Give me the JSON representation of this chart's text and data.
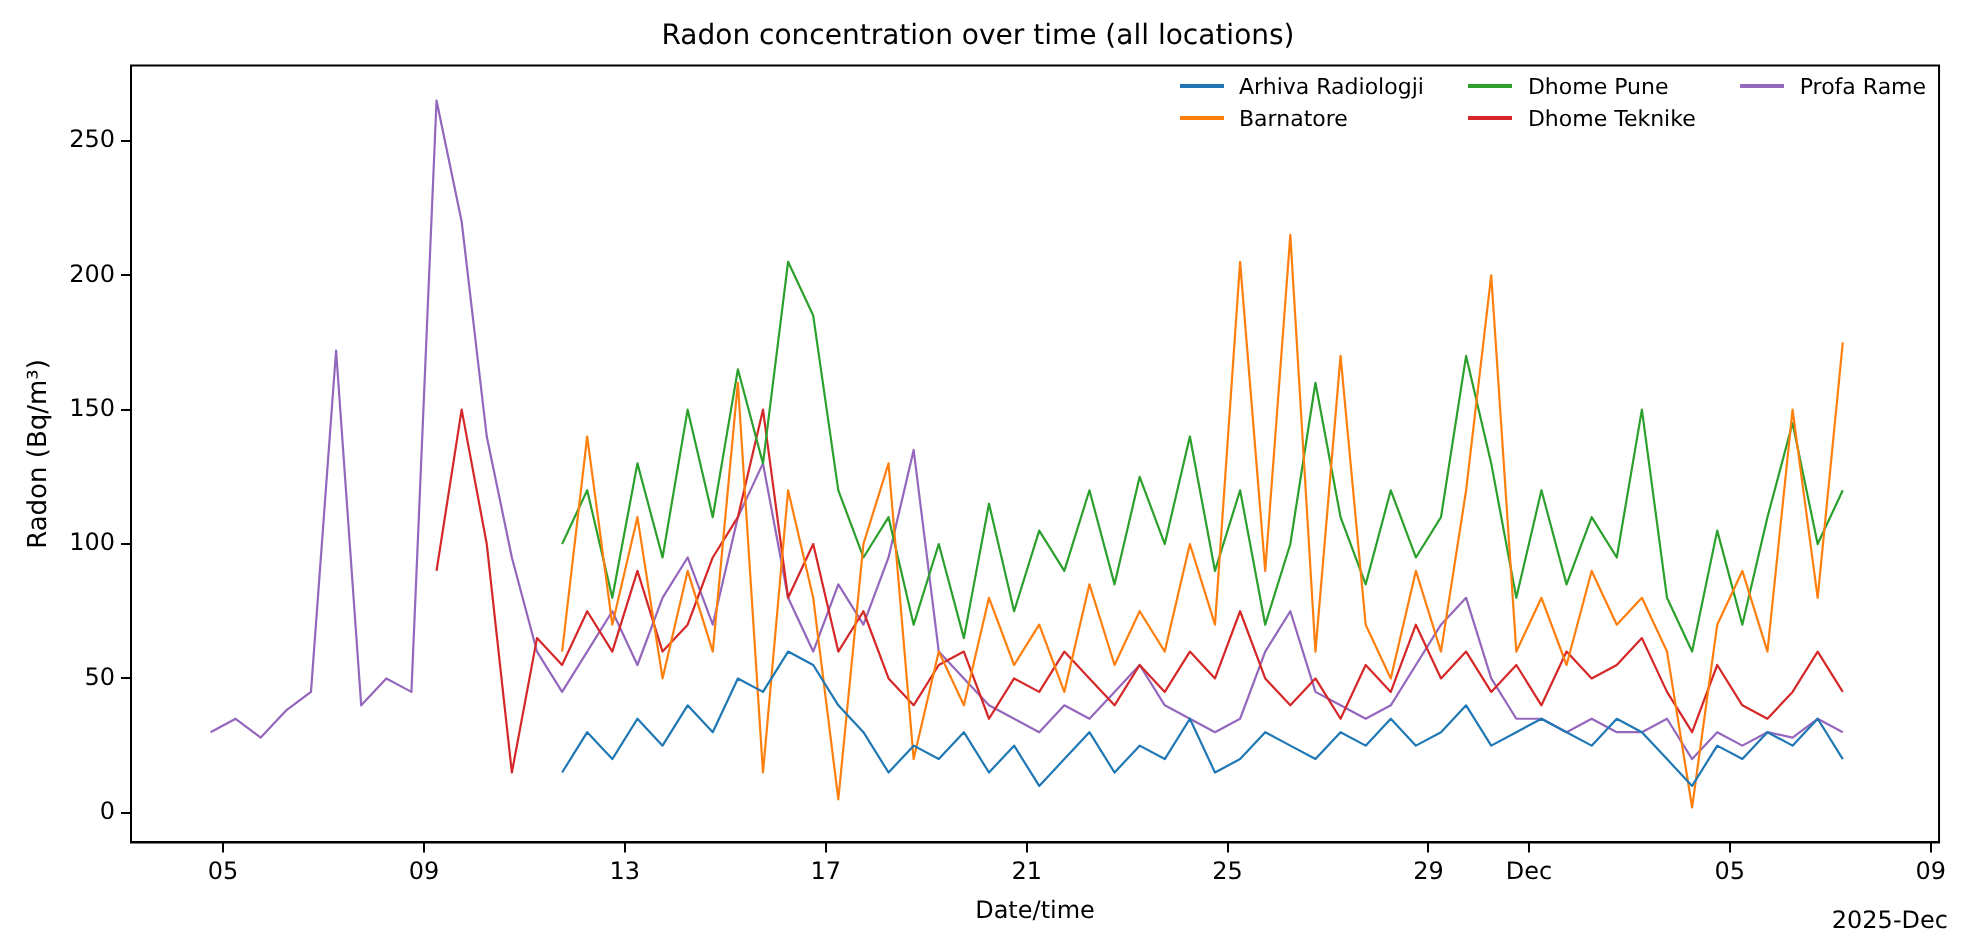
{
  "chart_data": {
    "type": "line",
    "title": "Radon concentration over time (all locations)",
    "xlabel": "Date/time",
    "ylabel": "Radon (Bq/m³)",
    "x": [
      "2025-11-04T18:00",
      "2025-11-05T06:00",
      "2025-11-05T18:00",
      "2025-11-06T06:00",
      "2025-11-06T18:00",
      "2025-11-07T06:00",
      "2025-11-07T18:00",
      "2025-11-08T06:00",
      "2025-11-08T18:00",
      "2025-11-09T06:00",
      "2025-11-09T18:00",
      "2025-11-10T06:00",
      "2025-11-10T18:00",
      "2025-11-11T06:00",
      "2025-11-11T18:00",
      "2025-11-12T06:00",
      "2025-11-12T18:00",
      "2025-11-13T06:00",
      "2025-11-13T18:00",
      "2025-11-14T06:00",
      "2025-11-14T18:00",
      "2025-11-15T06:00",
      "2025-11-15T18:00",
      "2025-11-16T06:00",
      "2025-11-16T18:00",
      "2025-11-17T06:00",
      "2025-11-17T18:00",
      "2025-11-18T06:00",
      "2025-11-18T18:00",
      "2025-11-19T06:00",
      "2025-11-19T18:00",
      "2025-11-20T06:00",
      "2025-11-20T18:00",
      "2025-11-21T06:00",
      "2025-11-21T18:00",
      "2025-11-22T06:00",
      "2025-11-22T18:00",
      "2025-11-23T06:00",
      "2025-11-23T18:00",
      "2025-11-24T06:00",
      "2025-11-24T18:00",
      "2025-11-25T06:00",
      "2025-11-25T18:00",
      "2025-11-26T06:00",
      "2025-11-26T18:00",
      "2025-11-27T06:00",
      "2025-11-27T18:00",
      "2025-11-28T06:00",
      "2025-11-28T18:00",
      "2025-11-29T06:00",
      "2025-11-29T18:00",
      "2025-11-30T06:00",
      "2025-11-30T18:00",
      "2025-12-01T06:00",
      "2025-12-01T18:00",
      "2025-12-02T06:00",
      "2025-12-02T18:00",
      "2025-12-03T06:00",
      "2025-12-03T18:00",
      "2025-12-04T06:00",
      "2025-12-04T18:00",
      "2025-12-05T06:00",
      "2025-12-05T18:00",
      "2025-12-06T06:00",
      "2025-12-06T18:00",
      "2025-12-07T06:00"
    ],
    "series": [
      {
        "name": "Arhiva Radiologji",
        "color": "#1f77b4",
        "values": [
          null,
          null,
          null,
          null,
          null,
          null,
          null,
          null,
          null,
          null,
          null,
          null,
          null,
          null,
          15,
          30,
          20,
          35,
          25,
          40,
          30,
          50,
          45,
          60,
          55,
          40,
          30,
          15,
          25,
          20,
          30,
          15,
          25,
          10,
          20,
          30,
          15,
          25,
          20,
          35,
          15,
          20,
          30,
          25,
          20,
          30,
          25,
          35,
          25,
          30,
          40,
          25,
          30,
          35,
          30,
          25,
          35,
          30,
          20,
          10,
          25,
          20,
          30,
          25,
          35,
          20
        ]
      },
      {
        "name": "Barnatore",
        "color": "#ff7f0e",
        "values": [
          null,
          null,
          null,
          null,
          null,
          null,
          null,
          null,
          null,
          null,
          null,
          null,
          null,
          null,
          60,
          140,
          70,
          110,
          50,
          90,
          60,
          160,
          15,
          120,
          80,
          5,
          100,
          130,
          20,
          60,
          40,
          80,
          55,
          70,
          45,
          85,
          55,
          75,
          60,
          100,
          70,
          205,
          90,
          215,
          60,
          170,
          70,
          50,
          90,
          60,
          120,
          200,
          60,
          80,
          55,
          90,
          70,
          80,
          60,
          2,
          70,
          90,
          60,
          150,
          80,
          175
        ]
      },
      {
        "name": "Dhome Pune",
        "color": "#2ca02c",
        "values": [
          null,
          null,
          null,
          null,
          null,
          null,
          null,
          null,
          null,
          null,
          null,
          null,
          null,
          null,
          100,
          120,
          80,
          130,
          95,
          150,
          110,
          165,
          130,
          205,
          185,
          120,
          95,
          110,
          70,
          100,
          65,
          115,
          75,
          105,
          90,
          120,
          85,
          125,
          100,
          140,
          90,
          120,
          70,
          100,
          160,
          110,
          85,
          120,
          95,
          110,
          170,
          130,
          80,
          120,
          85,
          110,
          95,
          150,
          80,
          60,
          105,
          70,
          110,
          145,
          100,
          120
        ]
      },
      {
        "name": "Dhome Teknike",
        "color": "#d62728",
        "values": [
          null,
          null,
          null,
          null,
          null,
          null,
          null,
          null,
          null,
          90,
          150,
          100,
          15,
          65,
          55,
          75,
          60,
          90,
          60,
          70,
          95,
          110,
          150,
          80,
          100,
          60,
          75,
          50,
          40,
          55,
          60,
          35,
          50,
          45,
          60,
          50,
          40,
          55,
          45,
          60,
          50,
          75,
          50,
          40,
          50,
          35,
          55,
          45,
          70,
          50,
          60,
          45,
          55,
          40,
          60,
          50,
          55,
          65,
          45,
          30,
          55,
          40,
          35,
          45,
          60,
          45
        ]
      },
      {
        "name": "Profa Rame",
        "color": "#9467bd",
        "values": [
          30,
          35,
          28,
          38,
          45,
          172,
          40,
          50,
          45,
          265,
          220,
          140,
          95,
          60,
          45,
          60,
          75,
          55,
          80,
          95,
          70,
          110,
          130,
          80,
          60,
          85,
          70,
          95,
          135,
          60,
          50,
          40,
          35,
          30,
          40,
          35,
          45,
          55,
          40,
          35,
          30,
          35,
          60,
          75,
          45,
          40,
          35,
          40,
          55,
          70,
          80,
          50,
          35,
          35,
          30,
          35,
          30,
          30,
          35,
          20,
          30,
          25,
          30,
          28,
          35,
          30
        ]
      }
    ],
    "xlim": [
      "2025-11-03T04:00",
      "2025-12-09T04:00"
    ],
    "xticks": [
      {
        "value": "2025-11-05",
        "label": "05"
      },
      {
        "value": "2025-11-09",
        "label": "09"
      },
      {
        "value": "2025-11-13",
        "label": "13"
      },
      {
        "value": "2025-11-17",
        "label": "17"
      },
      {
        "value": "2025-11-21",
        "label": "21"
      },
      {
        "value": "2025-11-25",
        "label": "25"
      },
      {
        "value": "2025-11-29",
        "label": "29"
      },
      {
        "value": "2025-12-01",
        "label": "Dec"
      },
      {
        "value": "2025-12-05",
        "label": "05"
      },
      {
        "value": "2025-12-09",
        "label": "09"
      }
    ],
    "ylim": [
      -11,
      278
    ],
    "yticks": [
      0,
      50,
      100,
      150,
      200,
      250
    ],
    "annotations": [
      "2025-Dec"
    ],
    "legend": "top right",
    "marker": "none",
    "grid": false
  }
}
